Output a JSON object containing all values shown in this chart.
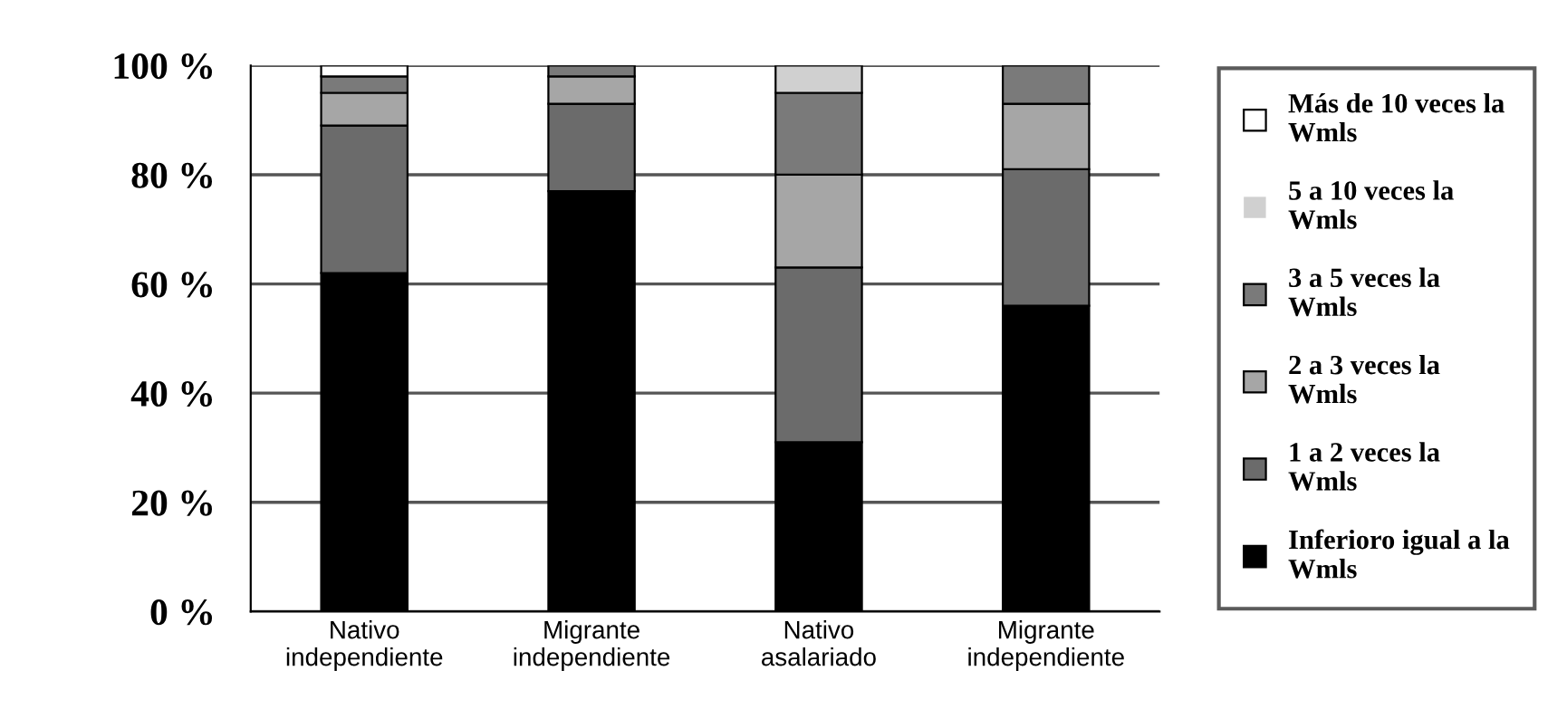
{
  "chart_data": {
    "type": "bar",
    "stacked": true,
    "categories": [
      "Nativo\nindependiente",
      "Migrante\nindependiente",
      "Nativo\nasalariado",
      "Migrante\nindependiente"
    ],
    "series": [
      {
        "name": "Inferioro igual a la\nWmls",
        "color": "#000000",
        "values": [
          62,
          77,
          31,
          56
        ]
      },
      {
        "name": "1 a 2 veces la\nWmls",
        "color": "#6b6b6b",
        "values": [
          27,
          16,
          32,
          25
        ]
      },
      {
        "name": "2 a 3 veces la\nWmls",
        "color": "#a6a6a6",
        "values": [
          6,
          5,
          17,
          12
        ]
      },
      {
        "name": "3 a 5 veces la\nWmls",
        "color": "#7a7a7a",
        "values": [
          3,
          2,
          15,
          7
        ]
      },
      {
        "name": "5 a 10 veces la\nWmls",
        "color": "#d0d0d0",
        "values": [
          0,
          0,
          5,
          0
        ]
      },
      {
        "name": "Más de 10 veces la\nWmls",
        "color": "#ffffff",
        "values": [
          2,
          0,
          0,
          0
        ]
      }
    ],
    "ylim": [
      0,
      100
    ],
    "yticks": [
      {
        "value": 0,
        "label": "0 %"
      },
      {
        "value": 20,
        "label": "20 %"
      },
      {
        "value": 40,
        "label": "40 %"
      },
      {
        "value": 60,
        "label": "60 %"
      },
      {
        "value": 80,
        "label": "80 %"
      },
      {
        "value": 100,
        "label": "100 %"
      }
    ],
    "grid": "y",
    "legend": "right"
  }
}
